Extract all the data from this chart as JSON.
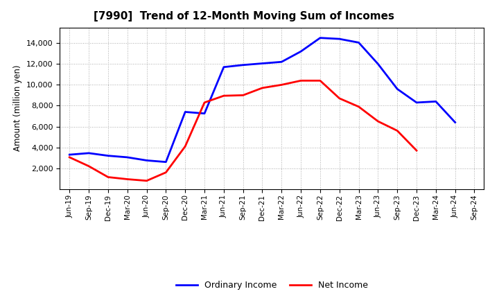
{
  "title": "[7990]  Trend of 12-Month Moving Sum of Incomes",
  "ylabel": "Amount (million yen)",
  "x_labels": [
    "Jun-19",
    "Sep-19",
    "Dec-19",
    "Mar-20",
    "Jun-20",
    "Sep-20",
    "Dec-20",
    "Mar-21",
    "Jun-21",
    "Sep-21",
    "Dec-21",
    "Mar-22",
    "Jun-22",
    "Sep-22",
    "Dec-22",
    "Mar-23",
    "Jun-23",
    "Sep-23",
    "Dec-23",
    "Mar-24",
    "Jun-24",
    "Sep-24"
  ],
  "ordinary_income": [
    3300,
    3450,
    3200,
    3050,
    2750,
    2600,
    7400,
    7250,
    11700,
    11900,
    12050,
    12200,
    13200,
    14500,
    14400,
    14050,
    12000,
    9600,
    8300,
    8400,
    6400,
    null
  ],
  "net_income": [
    3050,
    2200,
    1150,
    950,
    800,
    1600,
    4100,
    8300,
    8950,
    9000,
    9700,
    10000,
    10400,
    10400,
    8700,
    7900,
    6500,
    5600,
    3700,
    null,
    null,
    null
  ],
  "ordinary_color": "#0000FF",
  "net_color": "#FF0000",
  "ylim": [
    0,
    15500
  ],
  "yticks": [
    2000,
    4000,
    6000,
    8000,
    10000,
    12000,
    14000
  ],
  "background_color": "#FFFFFF",
  "grid_color": "#AAAAAA",
  "legend_labels": [
    "Ordinary Income",
    "Net Income"
  ]
}
